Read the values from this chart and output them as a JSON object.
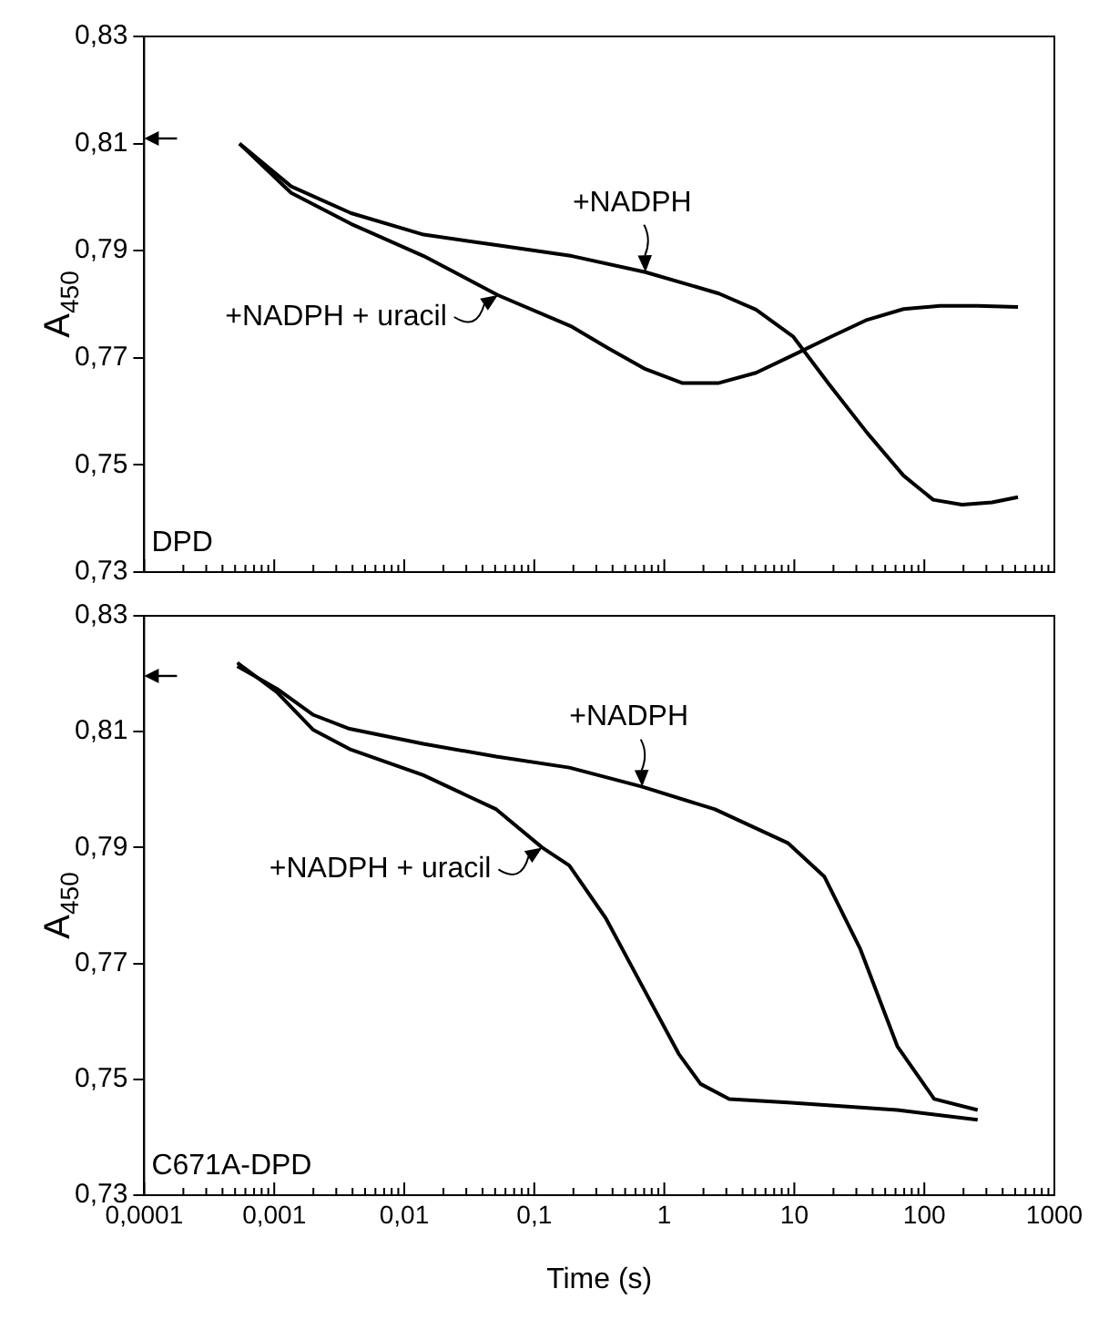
{
  "chart_data": [
    {
      "type": "line",
      "title": "DPD",
      "ylabel": "A$_{450}$",
      "log": "x",
      "tick_labels": "y",
      "grid": false,
      "legend": false,
      "marker": "none",
      "line_style": "solid",
      "xlim": [
        0.0001,
        1000
      ],
      "xticks": [
        0.0001,
        0.001,
        0.01,
        0.1,
        1,
        10,
        100,
        1000
      ],
      "ylim": [
        0.73,
        0.83
      ],
      "yticks": [
        {
          "value": 0.73,
          "label": "0,73"
        },
        {
          "value": 0.75,
          "label": "0,75"
        },
        {
          "value": 0.77,
          "label": "0,77"
        },
        {
          "value": 0.79,
          "label": "0,79"
        },
        {
          "value": 0.81,
          "label": "0,81"
        },
        {
          "value": 0.83,
          "label": "0,83"
        }
      ],
      "annotations": [
        {
          "text": "+NADPH",
          "x": 0.716,
          "y": 0.786
        },
        {
          "text": "+NADPH + uracil",
          "x": 0.0525,
          "y": 0.7817
        }
      ],
      "series": [
        {
          "color": "#000000",
          "x": [
            0.00054,
            0.00135,
            0.0039,
            0.0141,
            0.0525,
            0.195,
            0.716,
            2.63,
            5.07,
            9.77,
            18.6,
            36.3,
            69.2,
            117,
            195,
            331,
            525
          ],
          "values": [
            0.81,
            0.802,
            0.797,
            0.793,
            0.791,
            0.789,
            0.786,
            0.782,
            0.779,
            0.774,
            0.765,
            0.756,
            0.748,
            0.7435,
            0.7426,
            0.743,
            0.744
          ]
        },
        {
          "color": "#000000",
          "x": [
            0.00054,
            0.00135,
            0.0039,
            0.0141,
            0.0525,
            0.195,
            0.37,
            0.716,
            1.37,
            2.63,
            5.07,
            9.77,
            18.6,
            36.3,
            69.2,
            132,
            257,
            525
          ],
          "values": [
            0.81,
            0.8008,
            0.795,
            0.789,
            0.7817,
            0.7758,
            0.7718,
            0.7679,
            0.7653,
            0.7653,
            0.7672,
            0.7705,
            0.7738,
            0.7771,
            0.7791,
            0.7797,
            0.7797,
            0.7795
          ]
        }
      ]
    },
    {
      "type": "line",
      "title": "C671A-DPD",
      "xlabel": "Time (s)",
      "ylabel": "A$_{450}$",
      "log": "x",
      "grid": false,
      "legend": false,
      "marker": "none",
      "line_style": "solid",
      "xlim": [
        0.0001,
        1000
      ],
      "xticks": [
        {
          "value": 0.0001,
          "label": "0,0001"
        },
        {
          "value": 0.001,
          "label": "0,001"
        },
        {
          "value": 0.01,
          "label": "0,01"
        },
        {
          "value": 0.1,
          "label": "0,1"
        },
        1,
        10,
        100,
        1000
      ],
      "ylim": [
        0.73,
        0.83
      ],
      "yticks": [
        {
          "value": 0.73,
          "label": "0,73"
        },
        {
          "value": 0.75,
          "label": "0,75"
        },
        {
          "value": 0.77,
          "label": "0,77"
        },
        {
          "value": 0.79,
          "label": "0,79"
        },
        {
          "value": 0.81,
          "label": "0,81"
        },
        {
          "value": 0.83,
          "label": "0,83"
        }
      ],
      "annotations": [
        {
          "text": "+NADPH",
          "x": 0.676,
          "y": 0.8005
        },
        {
          "text": "+NADPH + uracil",
          "x": 0.115,
          "y": 0.79
        }
      ],
      "series": [
        {
          "color": "#000000",
          "x": [
            0.00052,
            0.00105,
            0.002,
            0.0038,
            0.014,
            0.051,
            0.186,
            0.676,
            2.45,
            8.9,
            17,
            32,
            62,
            119,
            257
          ],
          "values": [
            0.8213,
            0.8174,
            0.8129,
            0.8105,
            0.8079,
            0.8057,
            0.8038,
            0.8005,
            0.7966,
            0.7908,
            0.785,
            0.7726,
            0.7557,
            0.7466,
            0.7447
          ]
        },
        {
          "color": "#000000",
          "x": [
            0.00052,
            0.00105,
            0.002,
            0.0038,
            0.014,
            0.051,
            0.115,
            0.186,
            0.355,
            0.676,
            1.29,
            1.9,
            3.16,
            8.9,
            62,
            257
          ],
          "values": [
            0.8219,
            0.8168,
            0.8103,
            0.807,
            0.8025,
            0.7966,
            0.79,
            0.7869,
            0.7778,
            0.7661,
            0.7544,
            0.7492,
            0.7466,
            0.746,
            0.7447,
            0.743
          ]
        }
      ]
    }
  ]
}
